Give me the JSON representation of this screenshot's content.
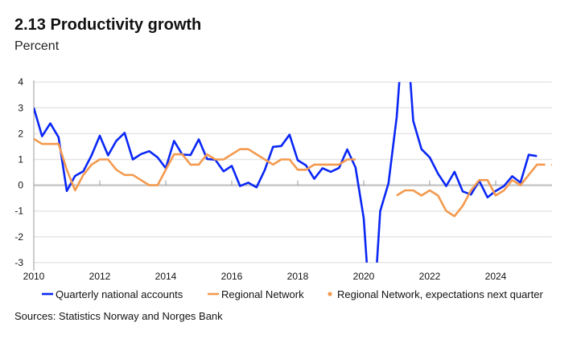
{
  "title": "2.13 Productivity growth",
  "subtitle": "Percent",
  "source": "Sources: Statistics Norway and Norges Bank",
  "chart_data": {
    "type": "line",
    "title": "2.13 Productivity growth",
    "ylabel": "Percent",
    "xlim": [
      2010,
      2026
    ],
    "ylim": [
      -3,
      4
    ],
    "yticks": [
      4,
      3,
      2,
      1,
      0,
      -1,
      -2,
      -3
    ],
    "xticks": [
      2010,
      2012,
      2014,
      2016,
      2018,
      2020,
      2022,
      2024
    ],
    "grid": true,
    "legend_position": "bottom",
    "x_start": "2010Q1",
    "frequency": "quarterly",
    "series": [
      {
        "name": "Quarterly national accounts",
        "color": "#0a27f5",
        "style": "line",
        "values": [
          3.0,
          1.9,
          2.4,
          1.86,
          -0.22,
          0.36,
          0.54,
          1.16,
          1.92,
          1.16,
          1.72,
          2.03,
          1.0,
          1.21,
          1.32,
          1.08,
          0.66,
          1.72,
          1.19,
          1.17,
          1.78,
          1.02,
          0.99,
          0.54,
          0.75,
          -0.03,
          0.1,
          -0.08,
          0.59,
          1.49,
          1.52,
          1.96,
          0.97,
          0.77,
          0.25,
          0.66,
          0.52,
          0.67,
          1.39,
          0.69,
          -1.28,
          -6.0,
          -1.0,
          0.08,
          2.65,
          7.0,
          2.5,
          1.4,
          1.08,
          0.45,
          -0.03,
          0.52,
          -0.24,
          -0.36,
          0.17,
          -0.47,
          -0.22,
          -0.03,
          0.35,
          0.1,
          1.18,
          1.13
        ]
      },
      {
        "name": "Regional Network",
        "color": "#f39a4f",
        "style": "line",
        "values": [
          1.8,
          1.6,
          1.6,
          1.6,
          0.6,
          -0.2,
          0.4,
          0.8,
          1.0,
          1.0,
          0.6,
          0.4,
          0.4,
          0.2,
          0.0,
          0.0,
          0.6,
          1.2,
          1.2,
          0.8,
          0.8,
          1.2,
          1.0,
          1.0,
          1.2,
          1.4,
          1.4,
          1.2,
          1.0,
          0.8,
          1.0,
          1.0,
          0.6,
          0.6,
          0.8,
          0.8,
          0.8,
          0.8,
          1.0,
          1.0,
          null,
          null,
          null,
          null,
          -0.4,
          -0.2,
          -0.2,
          -0.4,
          -0.2,
          -0.4,
          -1.0,
          -1.2,
          -0.8,
          -0.2,
          0.2,
          0.2,
          -0.4,
          -0.2,
          0.2,
          0.0,
          0.4,
          0.8,
          0.8
        ]
      },
      {
        "name": "Regional Network, expectations next quarter",
        "color": "#f39a4f",
        "style": "dot",
        "points": [
          {
            "x": "2025Q4",
            "y": 0.8
          }
        ]
      }
    ]
  }
}
